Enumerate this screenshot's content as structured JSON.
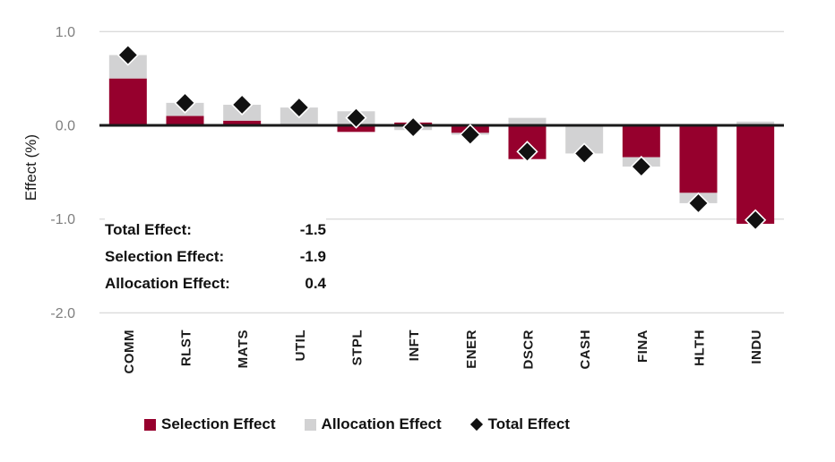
{
  "colors": {
    "selection": "#96002D",
    "allocation": "#D2D2D3",
    "total_marker": "#111111",
    "zero_line": "#1A1A1A",
    "gridline": "#DBDBDB",
    "tick_label": "#7E7E7E",
    "text": "#111111"
  },
  "annotation": {
    "rows": [
      {
        "label": "Total Effect:",
        "value": "-1.5"
      },
      {
        "label": "Selection Effect:",
        "value": "-1.9"
      },
      {
        "label": "Allocation Effect:",
        "value": "0.4"
      }
    ]
  },
  "legend": [
    {
      "label": "Selection Effect",
      "swatch": "square",
      "color": "#96002D"
    },
    {
      "label": "Allocation Effect",
      "swatch": "square",
      "color": "#D2D2D3"
    },
    {
      "label": "Total Effect",
      "swatch": "diamond",
      "color": "#111111"
    }
  ],
  "chart_data": {
    "type": "bar",
    "subtype": "stacked-bars-with-total-markers",
    "title": "",
    "xlabel": "",
    "ylabel": "Effect (%)",
    "ylim": [
      -2.0,
      1.0
    ],
    "yticks": [
      1.0,
      0.0,
      -1.0,
      -2.0
    ],
    "grid": true,
    "legend_position": "bottom",
    "categories": [
      "COMM",
      "RLST",
      "MATS",
      "UTIL",
      "STPL",
      "INFT",
      "ENER",
      "DSCR",
      "CASH",
      "FINA",
      "HLTH",
      "INDU"
    ],
    "series": [
      {
        "name": "Selection Effect",
        "color": "#96002D",
        "values": [
          0.5,
          0.1,
          0.05,
          0.0,
          -0.07,
          0.03,
          -0.08,
          -0.36,
          0.0,
          -0.34,
          -0.72,
          -1.05
        ]
      },
      {
        "name": "Allocation Effect",
        "color": "#D2D2D3",
        "values": [
          0.25,
          0.14,
          0.17,
          0.19,
          0.15,
          -0.05,
          -0.02,
          0.08,
          -0.3,
          -0.1,
          -0.11,
          0.04
        ]
      }
    ],
    "markers": {
      "name": "Total Effect",
      "color": "#111111",
      "values": [
        0.75,
        0.24,
        0.22,
        0.19,
        0.08,
        -0.02,
        -0.1,
        -0.28,
        -0.3,
        -0.44,
        -0.83,
        -1.01
      ]
    },
    "summary": {
      "total_effect": -1.5,
      "selection_effect": -1.9,
      "allocation_effect": 0.4
    }
  }
}
